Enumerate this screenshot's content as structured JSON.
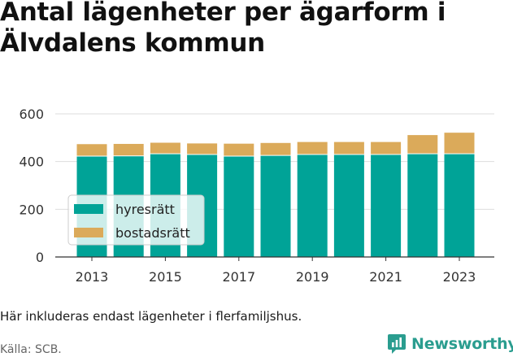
{
  "title": {
    "line1": "Antal lägenheter per ägarform i",
    "line2": "Älvdalens kommun"
  },
  "note": "Här inkluderas endast lägenheter i flerfamiljshus.",
  "source": "Källa: SCB.",
  "brand": {
    "name": "Newsworthy",
    "icon": "newsworthy-logo-icon",
    "color": "#2a9d8f"
  },
  "colors": {
    "hyresratt": "#00a397",
    "bostadsratt": "#dbaa5a",
    "grid": "#dddddd"
  },
  "chart_data": {
    "type": "bar",
    "stacked": true,
    "title": "Antal lägenheter per ägarform i Älvdalens kommun",
    "x": [
      2013,
      2014,
      2015,
      2016,
      2017,
      2018,
      2019,
      2020,
      2021,
      2022,
      2023
    ],
    "x_tick_labels": [
      "2013",
      "2015",
      "2017",
      "2019",
      "2021",
      "2023"
    ],
    "series": [
      {
        "name": "hyresrätt",
        "color": "#00a397",
        "values": [
          421,
          422,
          431,
          428,
          421,
          424,
          428,
          428,
          428,
          431,
          431
        ]
      },
      {
        "name": "bostadsrätt",
        "color": "#dbaa5a",
        "values": [
          52,
          52,
          48,
          48,
          54,
          54,
          54,
          54,
          54,
          80,
          90
        ]
      }
    ],
    "ylim": [
      0,
      600
    ],
    "y_ticks": [
      0,
      200,
      400,
      600
    ],
    "xlabel": "",
    "ylabel": "",
    "grid": true,
    "legend_position": "bottom-left"
  }
}
